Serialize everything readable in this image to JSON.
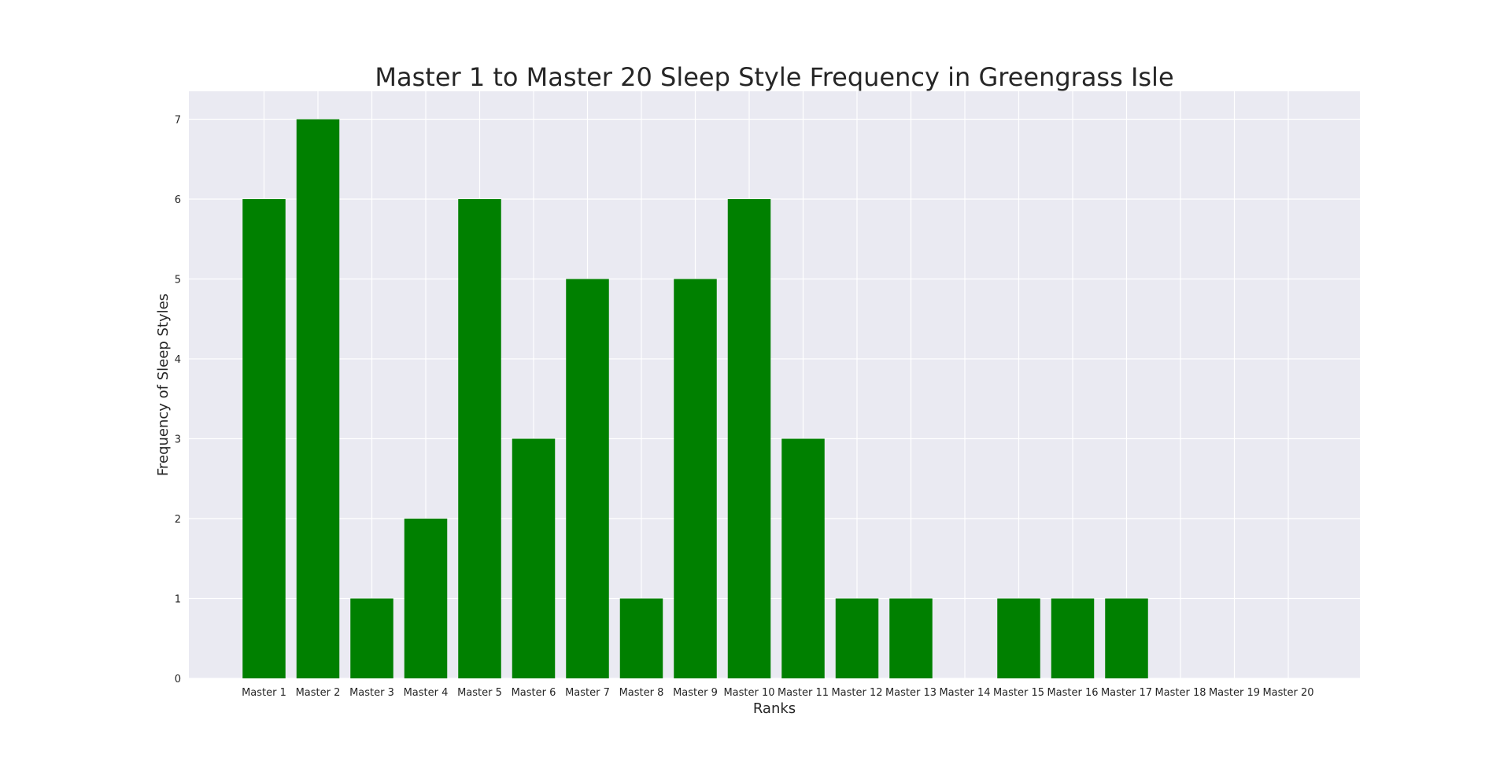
{
  "chart_data": {
    "type": "bar",
    "title": "Master 1 to Master 20 Sleep Style Frequency in Greengrass Isle",
    "xlabel": "Ranks",
    "ylabel": "Frequency of Sleep Styles",
    "categories": [
      "Master 1",
      "Master 2",
      "Master 3",
      "Master 4",
      "Master 5",
      "Master 6",
      "Master 7",
      "Master 8",
      "Master 9",
      "Master 10",
      "Master 11",
      "Master 12",
      "Master 13",
      "Master 14",
      "Master 15",
      "Master 16",
      "Master 17",
      "Master 18",
      "Master 19",
      "Master 20"
    ],
    "values": [
      6,
      7,
      1,
      2,
      6,
      3,
      5,
      1,
      5,
      6,
      3,
      1,
      1,
      0,
      1,
      1,
      1,
      0,
      0,
      0
    ],
    "ylim": [
      0,
      7.35
    ],
    "yticks": [
      0,
      1,
      2,
      3,
      4,
      5,
      6,
      7
    ],
    "grid": true,
    "legend": "none",
    "bar_color": "#008000",
    "plot_background": "#eaeaf2",
    "grid_color": "#ffffff"
  }
}
